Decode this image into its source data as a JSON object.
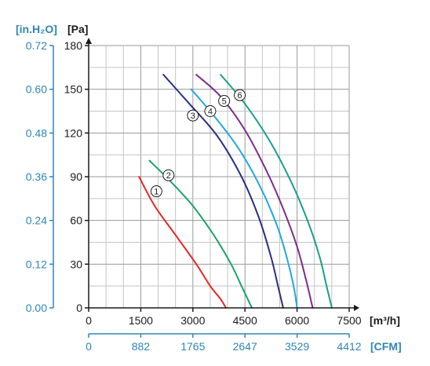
{
  "chart_data": {
    "type": "line",
    "x_unit": "[m³/h]",
    "x_secondary_unit": "[CFM]",
    "y_unit": "[Pa]",
    "y_secondary_unit": "[in.H₂O]",
    "xlim": [
      0,
      7500
    ],
    "ylim": [
      0,
      180
    ],
    "grid": true,
    "x_ticks": [
      "0",
      "1500",
      "3000",
      "4500",
      "6000",
      "7500"
    ],
    "x_secondary_ticks": [
      "0",
      "882",
      "1765",
      "2647",
      "3529",
      "4412"
    ],
    "y_ticks": [
      "0",
      "30",
      "60",
      "90",
      "120",
      "150",
      "180"
    ],
    "y_secondary_ticks": [
      "0.00",
      "0.12",
      "0.24",
      "0.36",
      "0.48",
      "0.60",
      "0.72"
    ],
    "series": [
      {
        "name": "1",
        "color": "#e8262a",
        "points": [
          [
            1450,
            90
          ],
          [
            1900,
            70
          ],
          [
            2500,
            50
          ],
          [
            3100,
            30
          ],
          [
            3500,
            15
          ],
          [
            3800,
            6
          ],
          [
            3950,
            0
          ]
        ]
      },
      {
        "name": "2",
        "color": "#1aa36a",
        "points": [
          [
            1750,
            101
          ],
          [
            2350,
            87
          ],
          [
            3000,
            70
          ],
          [
            3600,
            50
          ],
          [
            4100,
            30
          ],
          [
            4400,
            15
          ],
          [
            4600,
            5
          ],
          [
            4700,
            0
          ]
        ]
      },
      {
        "name": "3",
        "color": "#2b2f80",
        "points": [
          [
            2150,
            160
          ],
          [
            2900,
            140
          ],
          [
            3700,
            118
          ],
          [
            4400,
            90
          ],
          [
            4900,
            62
          ],
          [
            5250,
            35
          ],
          [
            5450,
            15
          ],
          [
            5600,
            0
          ]
        ]
      },
      {
        "name": "4",
        "color": "#1fa9e1",
        "points": [
          [
            2950,
            150
          ],
          [
            3600,
            132
          ],
          [
            4300,
            110
          ],
          [
            4900,
            85
          ],
          [
            5400,
            58
          ],
          [
            5700,
            35
          ],
          [
            5900,
            15
          ],
          [
            6000,
            0
          ]
        ]
      },
      {
        "name": "5",
        "color": "#7b2c8e",
        "points": [
          [
            3100,
            160
          ],
          [
            3800,
            145
          ],
          [
            4500,
            122
          ],
          [
            5100,
            95
          ],
          [
            5600,
            68
          ],
          [
            6000,
            42
          ],
          [
            6250,
            20
          ],
          [
            6450,
            0
          ]
        ]
      },
      {
        "name": "6",
        "color": "#16a08a",
        "points": [
          [
            3800,
            160
          ],
          [
            4500,
            140
          ],
          [
            5200,
            115
          ],
          [
            5800,
            88
          ],
          [
            6300,
            60
          ],
          [
            6650,
            35
          ],
          [
            6850,
            15
          ],
          [
            7000,
            0
          ]
        ]
      }
    ],
    "curve_labels": [
      {
        "name": "1",
        "x": 1950,
        "y": 80
      },
      {
        "name": "2",
        "x": 2300,
        "y": 91
      },
      {
        "name": "3",
        "x": 3000,
        "y": 132
      },
      {
        "name": "4",
        "x": 3500,
        "y": 135
      },
      {
        "name": "5",
        "x": 3900,
        "y": 142
      },
      {
        "name": "6",
        "x": 4350,
        "y": 146
      }
    ]
  }
}
